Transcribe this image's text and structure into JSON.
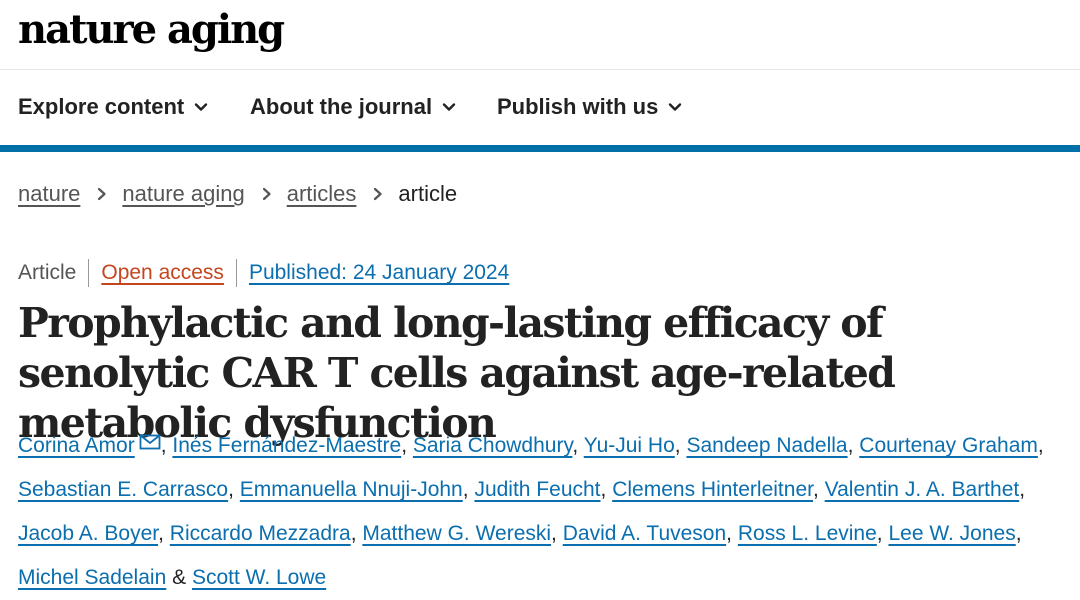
{
  "masthead": {
    "logo_text": "nature aging"
  },
  "nav": {
    "items": [
      {
        "label": "Explore content"
      },
      {
        "label": "About the journal"
      },
      {
        "label": "Publish with us"
      }
    ]
  },
  "breadcrumb": {
    "items": [
      {
        "label": "nature"
      },
      {
        "label": "nature aging"
      },
      {
        "label": "articles"
      }
    ],
    "current": "article"
  },
  "article": {
    "type": "Article",
    "access": "Open access",
    "published": "Published: 24 January 2024",
    "title": "Prophylactic and long-lasting efficacy of senolytic CAR T cells against age-related metabolic dysfunction",
    "authors": [
      "Corina Amor",
      "Inés Fernández-Maestre",
      "Saria Chowdhury",
      "Yu-Jui Ho",
      "Sandeep Nadella",
      "Courtenay Graham",
      "Sebastian E. Carrasco",
      "Emmanuella Nnuji-John",
      "Judith Feucht",
      "Clemens Hinterleitner",
      "Valentin J. A. Barthet",
      "Jacob A. Boyer",
      "Riccardo Mezzadra",
      "Matthew G. Wereski",
      "David A. Tuveson",
      "Ross L. Levine",
      "Lee W. Jones",
      "Michel Sadelain",
      "Scott W. Lowe"
    ],
    "author_separator": ",",
    "author_final_separator": "&"
  },
  "colors": {
    "accent_blue": "#0070a8",
    "link_blue": "#0b6eaf",
    "open_access_orange": "#c4461f"
  },
  "icons": {
    "nav_chevron": "chevron-down-icon",
    "breadcrumb_separator": "chevron-right-icon",
    "corresponding_author": "mail-icon"
  }
}
